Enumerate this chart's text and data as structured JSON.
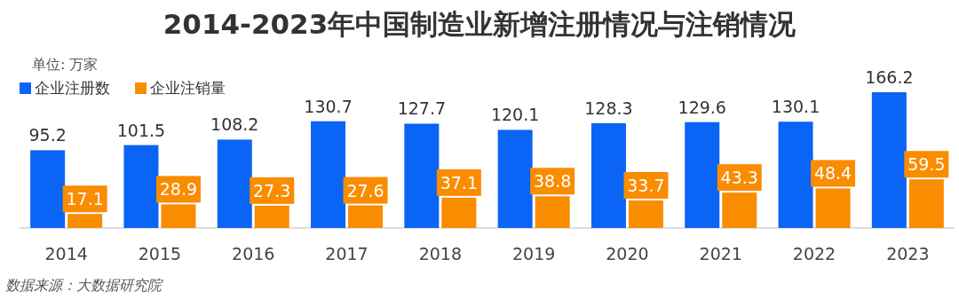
{
  "chart_data": {
    "type": "bar",
    "title": "2014-2023年中国制造业新增注册情况与注销情况",
    "categories": [
      "2014",
      "2015",
      "2016",
      "2017",
      "2018",
      "2019",
      "2020",
      "2021",
      "2022",
      "2023"
    ],
    "series": [
      {
        "name": "企业注册数",
        "color": "#0a64f5",
        "values": [
          95.2,
          101.5,
          108.2,
          130.7,
          127.7,
          120.1,
          128.3,
          129.6,
          130.1,
          166.2
        ]
      },
      {
        "name": "企业注销量",
        "color": "#fa8c00",
        "values": [
          17.1,
          28.9,
          27.3,
          27.6,
          37.1,
          38.8,
          33.7,
          43.3,
          48.4,
          59.5
        ]
      }
    ],
    "data_labels": true,
    "legend": "top left",
    "annotations": [
      "单位: 万家",
      "数据来源：大数据研究院"
    ]
  }
}
